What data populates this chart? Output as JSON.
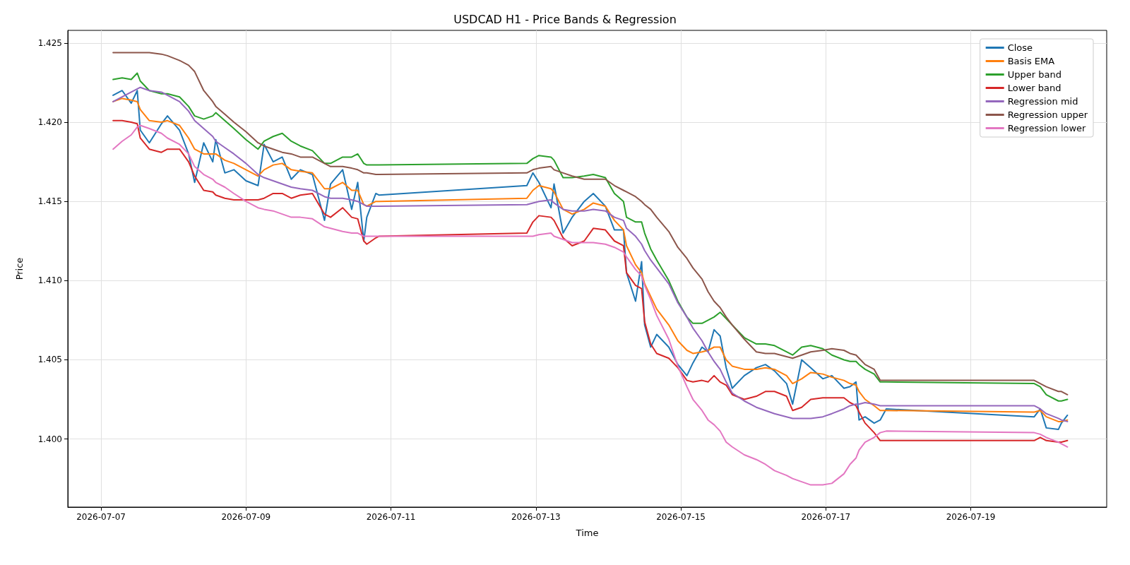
{
  "chart_data": {
    "type": "line",
    "title": "USDCAD H1 - Price Bands & Regression",
    "xlabel": "Time",
    "ylabel": "Price",
    "x": [
      "2026-07-07T04:00",
      "2026-07-07T07:00",
      "2026-07-07T10:00",
      "2026-07-07T12:00",
      "2026-07-07T13:00",
      "2026-07-07T16:00",
      "2026-07-07T20:00",
      "2026-07-07T22:00",
      "2026-07-08T02:00",
      "2026-07-08T05:00",
      "2026-07-08T07:00",
      "2026-07-08T10:00",
      "2026-07-08T13:00",
      "2026-07-08T14:00",
      "2026-07-08T17:00",
      "2026-07-08T20:00",
      "2026-07-09T00:00",
      "2026-07-09T04:00",
      "2026-07-09T06:00",
      "2026-07-09T09:00",
      "2026-07-09T12:00",
      "2026-07-09T15:00",
      "2026-07-09T18:00",
      "2026-07-09T22:00",
      "2026-07-10T02:00",
      "2026-07-10T04:00",
      "2026-07-10T08:00",
      "2026-07-10T11:00",
      "2026-07-10T13:00",
      "2026-07-10T15:00",
      "2026-07-10T16:00",
      "2026-07-10T19:00",
      "2026-07-10T20:00",
      "2026-07-12T21:00",
      "2026-07-12T23:00",
      "2026-07-13T01:00",
      "2026-07-13T05:00",
      "2026-07-13T06:00",
      "2026-07-13T09:00",
      "2026-07-13T12:00",
      "2026-07-13T16:00",
      "2026-07-13T19:00",
      "2026-07-13T23:00",
      "2026-07-14T02:00",
      "2026-07-14T05:00",
      "2026-07-14T06:00",
      "2026-07-14T09:00",
      "2026-07-14T11:00",
      "2026-07-14T12:00",
      "2026-07-14T14:00",
      "2026-07-14T16:00",
      "2026-07-14T20:00",
      "2026-07-14T23:00",
      "2026-07-15T02:00",
      "2026-07-15T04:00",
      "2026-07-15T07:00",
      "2026-07-15T09:00",
      "2026-07-15T11:00",
      "2026-07-15T13:00",
      "2026-07-15T15:00",
      "2026-07-15T17:00",
      "2026-07-15T21:00",
      "2026-07-16T01:00",
      "2026-07-16T04:00",
      "2026-07-16T07:00",
      "2026-07-16T11:00",
      "2026-07-16T13:00",
      "2026-07-16T16:00",
      "2026-07-16T19:00",
      "2026-07-16T23:00",
      "2026-07-17T02:00",
      "2026-07-17T06:00",
      "2026-07-17T08:00",
      "2026-07-17T10:00",
      "2026-07-17T11:00",
      "2026-07-17T13:00",
      "2026-07-17T16:00",
      "2026-07-17T18:00",
      "2026-07-17T20:00",
      "2026-07-19T21:00",
      "2026-07-19T23:00",
      "2026-07-20T01:00",
      "2026-07-20T05:00",
      "2026-07-20T06:00",
      "2026-07-20T08:00"
    ],
    "series": [
      {
        "name": "Close",
        "color": "#1f77b4",
        "values": [
          1.4217,
          1.422,
          1.4212,
          1.422,
          1.4195,
          1.4187,
          1.4199,
          1.4204,
          1.4195,
          1.418,
          1.4162,
          1.4187,
          1.4175,
          1.4189,
          1.4168,
          1.417,
          1.4163,
          1.416,
          1.4186,
          1.4175,
          1.4178,
          1.4164,
          1.417,
          1.4167,
          1.4138,
          1.4161,
          1.417,
          1.4145,
          1.4162,
          1.4125,
          1.414,
          1.4155,
          1.4154,
          1.416,
          1.4168,
          1.4162,
          1.4146,
          1.4161,
          1.413,
          1.414,
          1.415,
          1.4155,
          1.4147,
          1.4132,
          1.4132,
          1.4105,
          1.4087,
          1.4112,
          1.4072,
          1.4058,
          1.4066,
          1.4058,
          1.4047,
          1.404,
          1.4048,
          1.4058,
          1.4055,
          1.4069,
          1.4065,
          1.4045,
          1.4032,
          1.404,
          1.4045,
          1.4047,
          1.4043,
          1.4035,
          1.4022,
          1.405,
          1.4045,
          1.4038,
          1.404,
          1.4032,
          1.4033,
          1.4036,
          1.4012,
          1.4014,
          1.401,
          1.4012,
          1.4019,
          1.4014,
          1.4019,
          1.4007,
          1.4006,
          1.401,
          1.4015
        ]
      },
      {
        "name": "Basis EMA",
        "color": "#ff7f0e",
        "values": [
          1.4213,
          1.4215,
          1.4214,
          1.4213,
          1.4208,
          1.4201,
          1.42,
          1.4201,
          1.4198,
          1.419,
          1.4183,
          1.418,
          1.418,
          1.418,
          1.4176,
          1.4174,
          1.417,
          1.4166,
          1.417,
          1.4173,
          1.4174,
          1.417,
          1.4169,
          1.4168,
          1.4158,
          1.4158,
          1.4162,
          1.4157,
          1.4157,
          1.4148,
          1.4147,
          1.415,
          1.415,
          1.4152,
          1.4157,
          1.416,
          1.4158,
          1.4156,
          1.4145,
          1.4142,
          1.4145,
          1.4149,
          1.4147,
          1.4138,
          1.4132,
          1.4122,
          1.411,
          1.4105,
          1.4098,
          1.409,
          1.4082,
          1.4072,
          1.4062,
          1.4056,
          1.4054,
          1.4055,
          1.4056,
          1.4058,
          1.4058,
          1.405,
          1.4046,
          1.4044,
          1.4044,
          1.4045,
          1.4044,
          1.404,
          1.4035,
          1.4038,
          1.4042,
          1.4041,
          1.4039,
          1.4037,
          1.4035,
          1.4034,
          1.403,
          1.4025,
          1.4021,
          1.4018,
          1.4018,
          1.4017,
          1.4018,
          1.4014,
          1.4011,
          1.4011,
          1.4012
        ]
      },
      {
        "name": "Upper band",
        "color": "#2ca02c",
        "values": [
          1.4227,
          1.4228,
          1.4227,
          1.4231,
          1.4226,
          1.422,
          1.4218,
          1.4218,
          1.4216,
          1.421,
          1.4204,
          1.4202,
          1.4204,
          1.4206,
          1.4201,
          1.4196,
          1.4189,
          1.4183,
          1.4188,
          1.4191,
          1.4193,
          1.4188,
          1.4185,
          1.4182,
          1.4174,
          1.4174,
          1.4178,
          1.4178,
          1.418,
          1.4174,
          1.4173,
          1.4173,
          1.4173,
          1.4174,
          1.4177,
          1.4179,
          1.4178,
          1.4176,
          1.4165,
          1.4165,
          1.4166,
          1.4167,
          1.4165,
          1.4155,
          1.415,
          1.414,
          1.4137,
          1.4137,
          1.413,
          1.412,
          1.4113,
          1.41,
          1.4087,
          1.4077,
          1.4073,
          1.4073,
          1.4075,
          1.4077,
          1.408,
          1.4076,
          1.4072,
          1.4064,
          1.406,
          1.406,
          1.4059,
          1.4055,
          1.4053,
          1.4058,
          1.4059,
          1.4057,
          1.4053,
          1.405,
          1.4049,
          1.4049,
          1.4047,
          1.4044,
          1.4041,
          1.4036,
          1.4036,
          1.4035,
          1.4033,
          1.4028,
          1.4024,
          1.4024,
          1.4025
        ]
      },
      {
        "name": "Lower band",
        "color": "#d62728",
        "values": [
          1.4201,
          1.4201,
          1.42,
          1.4199,
          1.419,
          1.4183,
          1.4181,
          1.4183,
          1.4183,
          1.4175,
          1.4166,
          1.4157,
          1.4156,
          1.4154,
          1.4152,
          1.4151,
          1.4151,
          1.4151,
          1.4152,
          1.4155,
          1.4155,
          1.4152,
          1.4154,
          1.4155,
          1.4142,
          1.414,
          1.4146,
          1.414,
          1.4139,
          1.4125,
          1.4123,
          1.4127,
          1.4128,
          1.413,
          1.4137,
          1.4141,
          1.414,
          1.4138,
          1.4127,
          1.4122,
          1.4125,
          1.4133,
          1.4132,
          1.4125,
          1.4122,
          1.4105,
          1.4097,
          1.4095,
          1.4074,
          1.406,
          1.4054,
          1.4051,
          1.4045,
          1.4037,
          1.4036,
          1.4037,
          1.4036,
          1.404,
          1.4036,
          1.4034,
          1.4028,
          1.4025,
          1.4027,
          1.403,
          1.403,
          1.4027,
          1.4018,
          1.402,
          1.4025,
          1.4026,
          1.4026,
          1.4026,
          1.4023,
          1.4021,
          1.4017,
          1.401,
          1.4004,
          1.3999,
          1.3999,
          1.3999,
          1.4001,
          1.3999,
          1.3998,
          1.3998,
          1.3999
        ]
      },
      {
        "name": "Regression mid",
        "color": "#9467bd",
        "values": [
          1.4213,
          1.4216,
          1.4219,
          1.4221,
          1.4222,
          1.422,
          1.4219,
          1.4217,
          1.4213,
          1.4207,
          1.4201,
          1.4196,
          1.4191,
          1.4188,
          1.4184,
          1.418,
          1.4174,
          1.4167,
          1.4165,
          1.4163,
          1.4161,
          1.4159,
          1.4158,
          1.4157,
          1.4153,
          1.4152,
          1.4152,
          1.4151,
          1.415,
          1.4148,
          1.4147,
          1.4147,
          1.4147,
          1.4148,
          1.4149,
          1.415,
          1.4151,
          1.4149,
          1.4145,
          1.4144,
          1.4144,
          1.4145,
          1.4144,
          1.414,
          1.4138,
          1.4133,
          1.4128,
          1.4123,
          1.4119,
          1.4113,
          1.4108,
          1.4098,
          1.4086,
          1.4077,
          1.407,
          1.4062,
          1.4055,
          1.4049,
          1.4044,
          1.4036,
          1.4029,
          1.4024,
          1.402,
          1.4018,
          1.4016,
          1.4014,
          1.4013,
          1.4013,
          1.4013,
          1.4014,
          1.4016,
          1.4019,
          1.4021,
          1.4022,
          1.4022,
          1.4023,
          1.4022,
          1.4021,
          1.4021,
          1.4021,
          1.4019,
          1.4016,
          1.4013,
          1.4012,
          1.4011
        ]
      },
      {
        "name": "Regression upper",
        "color": "#8c564b",
        "values": [
          1.4244,
          1.4244,
          1.4244,
          1.4244,
          1.4244,
          1.4244,
          1.4243,
          1.4242,
          1.4239,
          1.4236,
          1.4232,
          1.422,
          1.4213,
          1.421,
          1.4205,
          1.42,
          1.4194,
          1.4187,
          1.4185,
          1.4183,
          1.4181,
          1.418,
          1.4178,
          1.4178,
          1.4174,
          1.4172,
          1.4172,
          1.4171,
          1.417,
          1.4168,
          1.4168,
          1.4167,
          1.4167,
          1.4168,
          1.417,
          1.4171,
          1.4172,
          1.417,
          1.4168,
          1.4166,
          1.4164,
          1.4164,
          1.4164,
          1.416,
          1.4157,
          1.4156,
          1.4153,
          1.415,
          1.4148,
          1.4145,
          1.414,
          1.4131,
          1.4121,
          1.4114,
          1.4108,
          1.4101,
          1.4093,
          1.4087,
          1.4083,
          1.4077,
          1.4072,
          1.4063,
          1.4055,
          1.4054,
          1.4054,
          1.4052,
          1.4051,
          1.4053,
          1.4055,
          1.4056,
          1.4057,
          1.4056,
          1.4054,
          1.4053,
          1.4051,
          1.4047,
          1.4044,
          1.4037,
          1.4037,
          1.4037,
          1.4035,
          1.4033,
          1.403,
          1.403,
          1.4028
        ]
      },
      {
        "name": "Regression lower",
        "color": "#e377c2",
        "values": [
          1.4183,
          1.4188,
          1.4192,
          1.4197,
          1.4198,
          1.4196,
          1.4193,
          1.419,
          1.4186,
          1.418,
          1.4172,
          1.4167,
          1.4164,
          1.4162,
          1.4159,
          1.4155,
          1.415,
          1.4146,
          1.4145,
          1.4144,
          1.4142,
          1.414,
          1.414,
          1.4139,
          1.4134,
          1.4133,
          1.4131,
          1.413,
          1.413,
          1.4128,
          1.4128,
          1.4128,
          1.4128,
          1.4128,
          1.4128,
          1.4129,
          1.413,
          1.4128,
          1.4126,
          1.4124,
          1.4124,
          1.4124,
          1.4123,
          1.4121,
          1.4118,
          1.4115,
          1.4107,
          1.4103,
          1.4097,
          1.4088,
          1.4078,
          1.4063,
          1.4046,
          1.4033,
          1.4025,
          1.4018,
          1.4012,
          1.4009,
          1.4005,
          1.3998,
          1.3995,
          1.399,
          1.3987,
          1.3984,
          1.398,
          1.3977,
          1.3975,
          1.3973,
          1.3971,
          1.3971,
          1.3972,
          1.3978,
          1.3984,
          1.3988,
          1.3993,
          1.3998,
          1.4001,
          1.4004,
          1.4005,
          1.4004,
          1.4003,
          1.4001,
          1.3998,
          1.3997,
          1.3995
        ]
      }
    ],
    "xlim": [
      "2026-07-06T13:00",
      "2026-07-20T21:00"
    ],
    "xticks": [
      "2026-07-07",
      "2026-07-09",
      "2026-07-11",
      "2026-07-13",
      "2026-07-15",
      "2026-07-17",
      "2026-07-19"
    ],
    "ylim": [
      1.3957,
      1.4258
    ],
    "yticks": [
      {
        "value": 1.4,
        "label": "1.400"
      },
      {
        "value": 1.405,
        "label": "1.405"
      },
      {
        "value": 1.41,
        "label": "1.410"
      },
      {
        "value": 1.415,
        "label": "1.415"
      },
      {
        "value": 1.42,
        "label": "1.420"
      },
      {
        "value": 1.425,
        "label": "1.425"
      }
    ],
    "grid": true,
    "legend": "top right",
    "line_style": "solid"
  }
}
